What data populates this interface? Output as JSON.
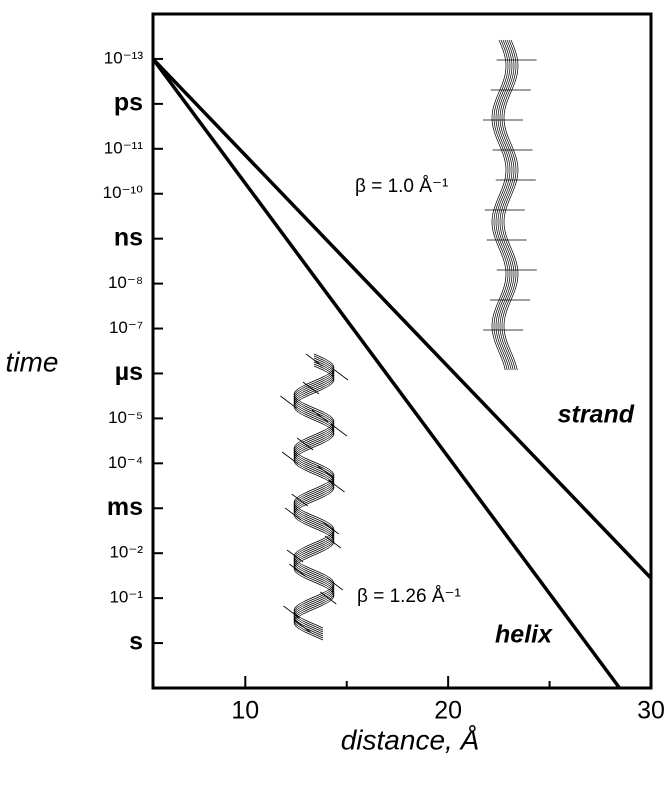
{
  "chart_data": {
    "type": "line",
    "x_label": "distance, Å",
    "y_label": "time",
    "y_log": true,
    "y_inverted": true,
    "xlim": [
      5.45,
      30
    ],
    "xticks": [
      10,
      20,
      30
    ],
    "x_minor_ticks": [
      15,
      25
    ],
    "ylim": [
      1e-14,
      10
    ],
    "yticks": [
      {
        "value": 1e-13,
        "label": "10⁻¹³"
      },
      {
        "value": 1e-12,
        "label": "ps"
      },
      {
        "value": 1e-11,
        "label": "10⁻¹¹"
      },
      {
        "value": 1e-10,
        "label": "10⁻¹⁰"
      },
      {
        "value": 1e-09,
        "label": "ns"
      },
      {
        "value": 1e-08,
        "label": "10⁻⁸"
      },
      {
        "value": 1e-07,
        "label": "10⁻⁷"
      },
      {
        "value": 1e-06,
        "label": "µs"
      },
      {
        "value": 1e-05,
        "label": "10⁻⁵"
      },
      {
        "value": 0.0001,
        "label": "10⁻⁴"
      },
      {
        "value": 0.001,
        "label": "ms"
      },
      {
        "value": 0.01,
        "label": "10⁻²"
      },
      {
        "value": 0.1,
        "label": "10⁻¹"
      },
      {
        "value": 1,
        "label": "s"
      }
    ],
    "series": [
      {
        "name": "strand",
        "color": "#000000",
        "x": [
          5.45,
          30
        ],
        "values": [
          1e-13,
          0.036
        ],
        "annotation": "β = 1.0 Å⁻¹"
      },
      {
        "name": "helix",
        "color": "#000000",
        "x": [
          5.45,
          28.45
        ],
        "values": [
          1e-13,
          10
        ],
        "annotation": "β = 1.26 Å⁻¹"
      }
    ]
  }
}
